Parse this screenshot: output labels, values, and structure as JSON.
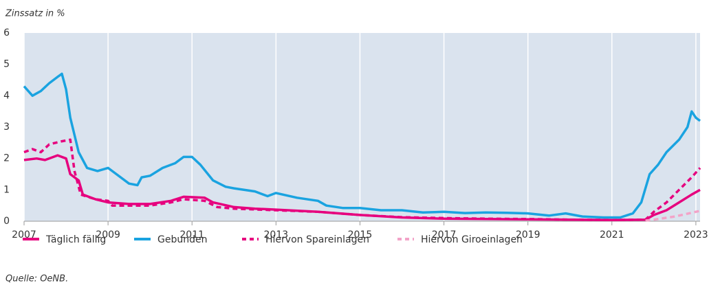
{
  "chart_data": {
    "type": "line",
    "y_label": "Zinssatz in %",
    "source": "Quelle: OeNB.",
    "xlim": [
      2007,
      2023.1
    ],
    "xticks": [
      2007,
      2009,
      2011,
      2013,
      2015,
      2017,
      2019,
      2021,
      2023
    ],
    "ylim": [
      0,
      6
    ],
    "yticks": [
      0,
      1,
      2,
      3,
      4,
      5,
      6
    ],
    "grid": true,
    "legend": "bottom",
    "series": [
      {
        "name": "Täglich fällig",
        "color": "#e6007e",
        "dash": false,
        "x": [
          2007.0,
          2007.3,
          2007.5,
          2007.8,
          2008.0,
          2008.1,
          2008.3,
          2008.4,
          2008.7,
          2009.0,
          2009.5,
          2010.0,
          2010.5,
          2010.8,
          2011.3,
          2011.5,
          2012.0,
          2012.5,
          2013.0,
          2014.0,
          2015.0,
          2016.0,
          2017.0,
          2018.0,
          2019.0,
          2020.0,
          2021.0,
          2021.8,
          2022.0,
          2022.3,
          2022.6,
          2022.9,
          2023.1
        ],
        "values": [
          1.95,
          2.0,
          1.95,
          2.1,
          2.0,
          1.5,
          1.3,
          0.85,
          0.7,
          0.6,
          0.55,
          0.55,
          0.65,
          0.78,
          0.75,
          0.6,
          0.45,
          0.4,
          0.37,
          0.3,
          0.2,
          0.12,
          0.08,
          0.07,
          0.06,
          0.05,
          0.04,
          0.05,
          0.2,
          0.35,
          0.6,
          0.85,
          1.0
        ]
      },
      {
        "name": "Gebunden",
        "color": "#1aa3e0",
        "dash": false,
        "x": [
          2007.0,
          2007.2,
          2007.4,
          2007.6,
          2007.8,
          2007.9,
          2008.0,
          2008.1,
          2008.3,
          2008.5,
          2008.75,
          2009.0,
          2009.2,
          2009.5,
          2009.7,
          2009.8,
          2010.0,
          2010.3,
          2010.6,
          2010.8,
          2011.0,
          2011.2,
          2011.5,
          2011.8,
          2012.0,
          2012.5,
          2012.8,
          2013.0,
          2013.5,
          2014.0,
          2014.2,
          2014.6,
          2015.0,
          2015.5,
          2016.0,
          2016.5,
          2017.0,
          2017.5,
          2018.0,
          2018.5,
          2019.0,
          2019.5,
          2019.9,
          2020.3,
          2020.8,
          2021.2,
          2021.5,
          2021.7,
          2021.9,
          2022.1,
          2022.3,
          2022.6,
          2022.8,
          2022.9,
          2023.0,
          2023.1
        ],
        "values": [
          4.3,
          4.0,
          4.15,
          4.4,
          4.6,
          4.7,
          4.2,
          3.3,
          2.2,
          1.7,
          1.6,
          1.7,
          1.5,
          1.2,
          1.15,
          1.4,
          1.45,
          1.7,
          1.85,
          2.05,
          2.05,
          1.8,
          1.3,
          1.1,
          1.05,
          0.95,
          0.8,
          0.9,
          0.75,
          0.65,
          0.5,
          0.42,
          0.42,
          0.35,
          0.35,
          0.28,
          0.3,
          0.26,
          0.28,
          0.27,
          0.25,
          0.18,
          0.25,
          0.15,
          0.12,
          0.12,
          0.25,
          0.6,
          1.5,
          1.8,
          2.2,
          2.6,
          3.0,
          3.5,
          3.3,
          3.2
        ]
      },
      {
        "name": "Hiervon Spareinlagen",
        "color": "#e6007e",
        "dash": true,
        "x": [
          2007.0,
          2007.2,
          2007.4,
          2007.6,
          2007.9,
          2008.1,
          2008.2,
          2008.35,
          2008.7,
          2009.0,
          2009.1,
          2009.5,
          2010.0,
          2010.5,
          2010.8,
          2011.3,
          2011.6,
          2012.0,
          2013.0,
          2014.0,
          2015.0,
          2016.0,
          2017.0,
          2018.0,
          2019.0,
          2020.0,
          2021.0,
          2021.8,
          2022.0,
          2022.3,
          2022.6,
          2022.9,
          2023.1
        ],
        "values": [
          2.2,
          2.3,
          2.2,
          2.45,
          2.55,
          2.6,
          1.6,
          0.85,
          0.7,
          0.65,
          0.5,
          0.5,
          0.5,
          0.6,
          0.7,
          0.65,
          0.45,
          0.4,
          0.35,
          0.3,
          0.2,
          0.13,
          0.1,
          0.08,
          0.07,
          0.05,
          0.04,
          0.05,
          0.3,
          0.6,
          1.0,
          1.4,
          1.7
        ]
      },
      {
        "name": "Hiervon Giroeinlagen",
        "color": "#f3a3c8",
        "dash": true,
        "x": [
          2021.8,
          2022.0,
          2022.5,
          2023.1
        ],
        "values": [
          0.02,
          0.05,
          0.15,
          0.33
        ]
      }
    ]
  }
}
